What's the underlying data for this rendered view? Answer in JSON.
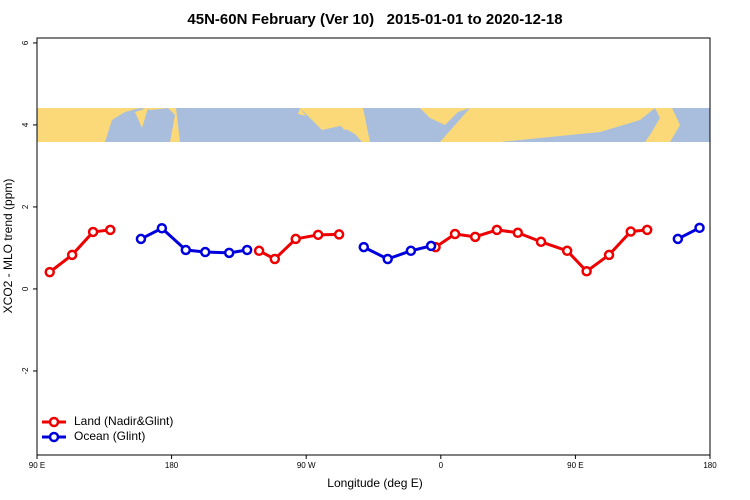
{
  "chart_data": {
    "type": "line",
    "title": "45N-60N February (Ver 10)   2015-01-01 to 2020-12-18",
    "x_label": "Longitude (deg E)",
    "y_label": "XCO2 - MLO trend (ppm)",
    "xlim": [
      90,
      540
    ],
    "xticks": [
      {
        "value": 90,
        "label": "90 E"
      },
      180,
      {
        "value": 270,
        "label": "90 W"
      },
      {
        "value": 360,
        "label": "0"
      },
      {
        "value": 450,
        "label": "90 E"
      },
      {
        "value": 540,
        "label": "180"
      }
    ],
    "ylim": [
      -4.05,
      6.12
    ],
    "yticks": [
      -2,
      0,
      2,
      4,
      6
    ],
    "legend": "bottom-left",
    "series": [
      {
        "name": "Land (Nadir&Glint)",
        "color": "#ee0000",
        "x": [
          98.5,
          113.5,
          127.5,
          139,
          null,
          238.5,
          249,
          263,
          278,
          292,
          null,
          356.5,
          369.5,
          383,
          397.5,
          411.5,
          427,
          444.5,
          457.5,
          472.5,
          487,
          498
        ],
        "values": [
          0.41,
          0.83,
          1.39,
          1.44,
          null,
          0.93,
          0.73,
          1.22,
          1.32,
          1.33,
          null,
          1.02,
          1.34,
          1.27,
          1.44,
          1.37,
          1.15,
          0.93,
          0.43,
          0.83,
          1.4,
          1.44
        ]
      },
      {
        "name": "Ocean (Glint)",
        "color": "#0000dd",
        "x": [
          159.5,
          173.5,
          189.5,
          202.5,
          218.5,
          230.5,
          null,
          308.5,
          324.5,
          340,
          353.5,
          null,
          518.5,
          533
        ],
        "values": [
          1.22,
          1.48,
          0.95,
          0.9,
          0.88,
          0.95,
          null,
          1.02,
          0.73,
          0.93,
          1.05,
          null,
          1.22,
          1.49
        ]
      }
    ]
  }
}
